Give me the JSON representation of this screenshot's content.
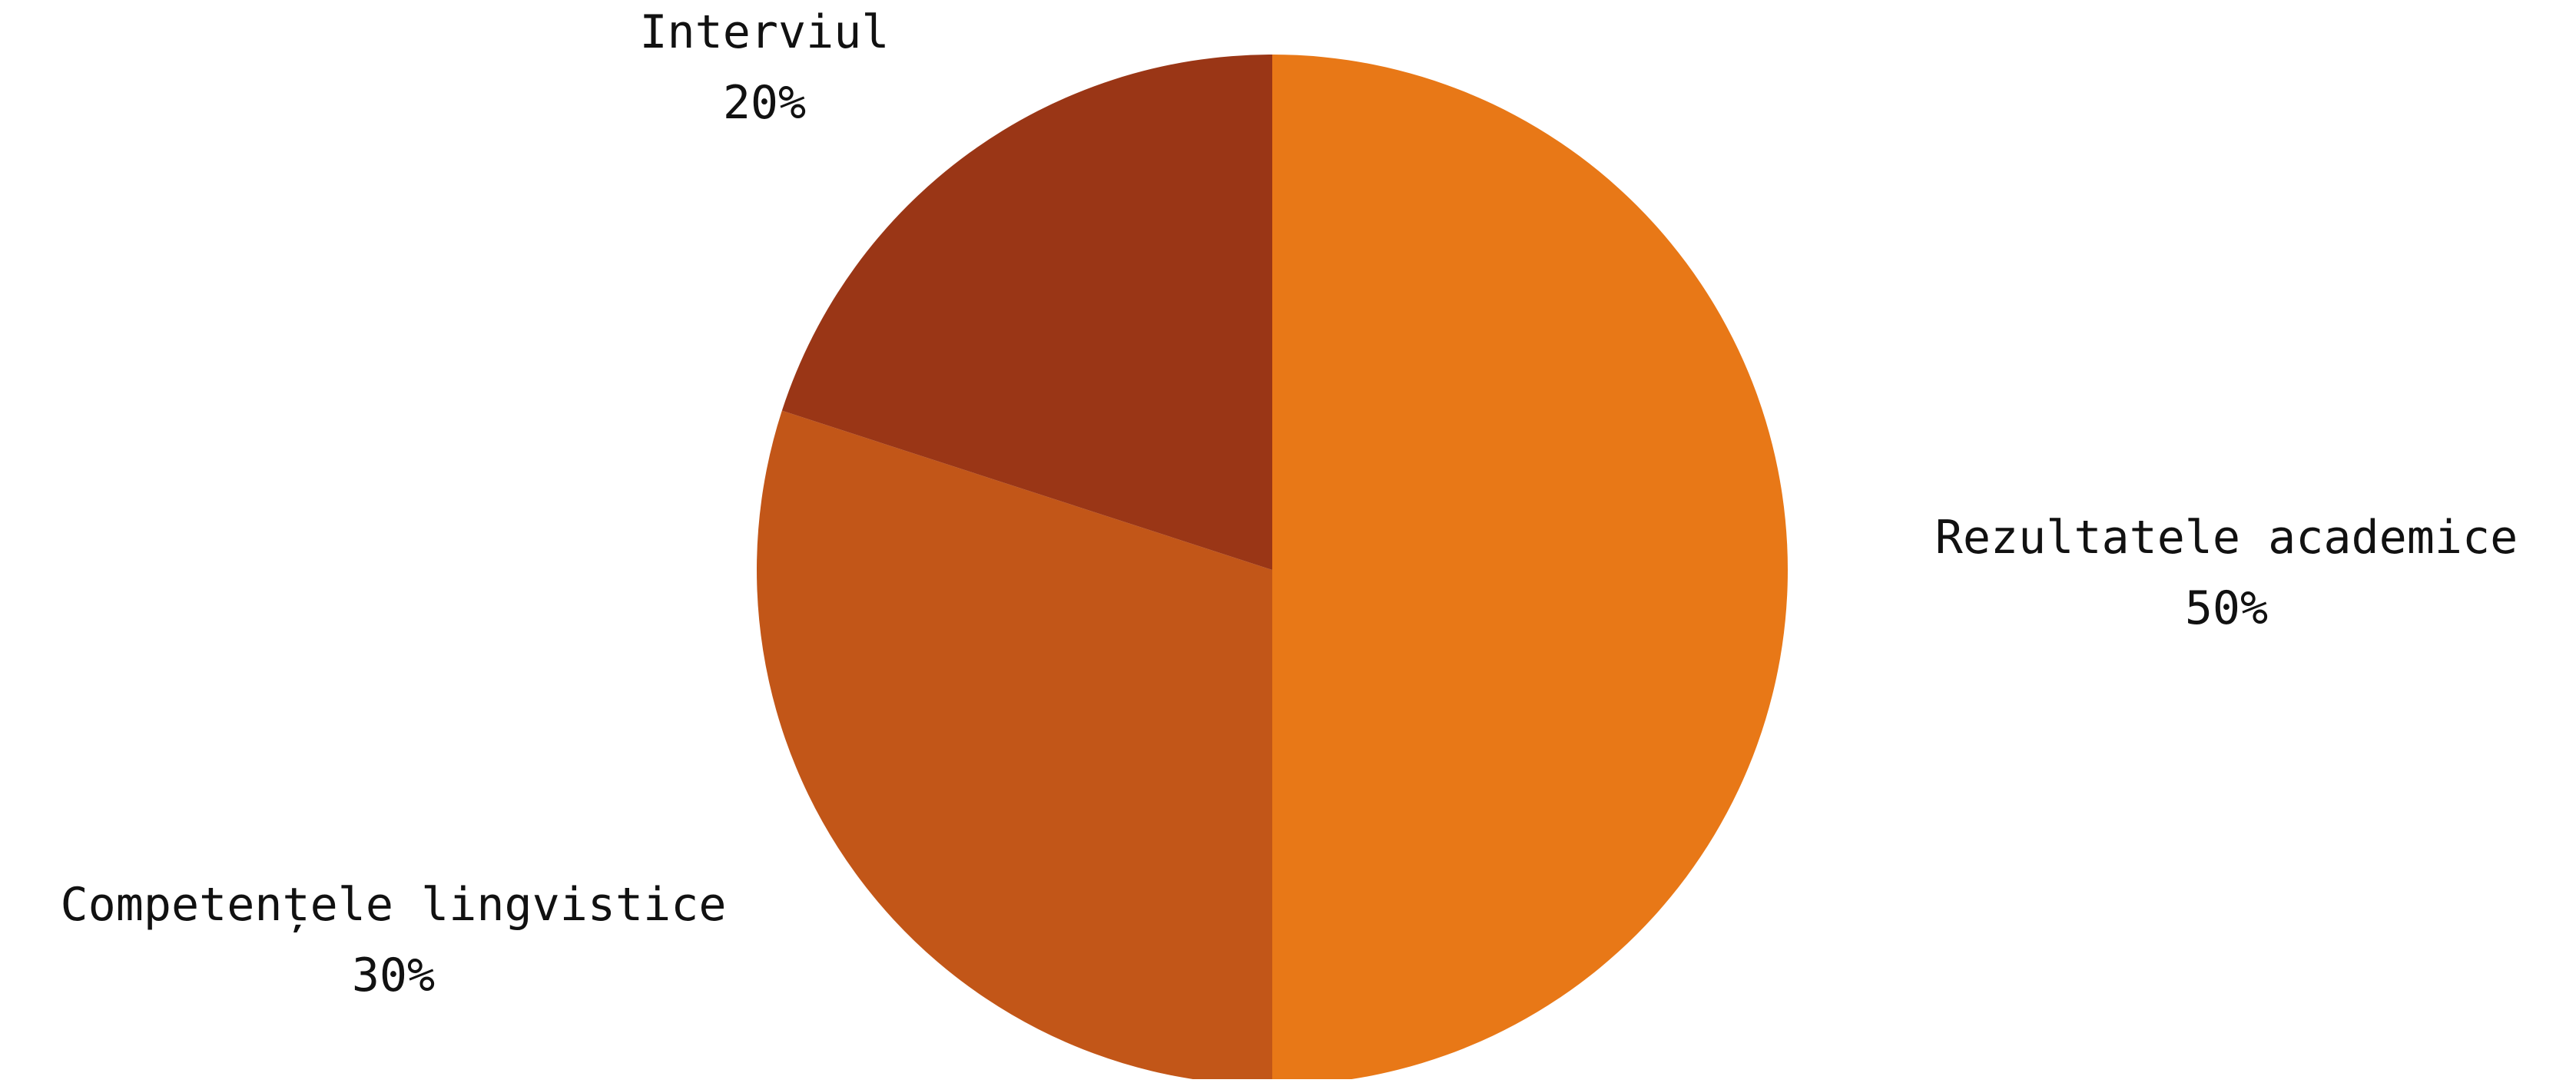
{
  "chart_data": {
    "type": "pie",
    "title": "",
    "start_angle_deg": 0,
    "direction": "clockwise",
    "slices": [
      {
        "label": "Rezultatele academice",
        "value": 50,
        "value_label": "50%",
        "color": "#e87817"
      },
      {
        "label": "Competențele lingvistice",
        "value": 30,
        "value_label": "30%",
        "color": "#c25618"
      },
      {
        "label": "Interviul",
        "value": 20,
        "value_label": "20%",
        "color": "#9a3616"
      }
    ]
  }
}
